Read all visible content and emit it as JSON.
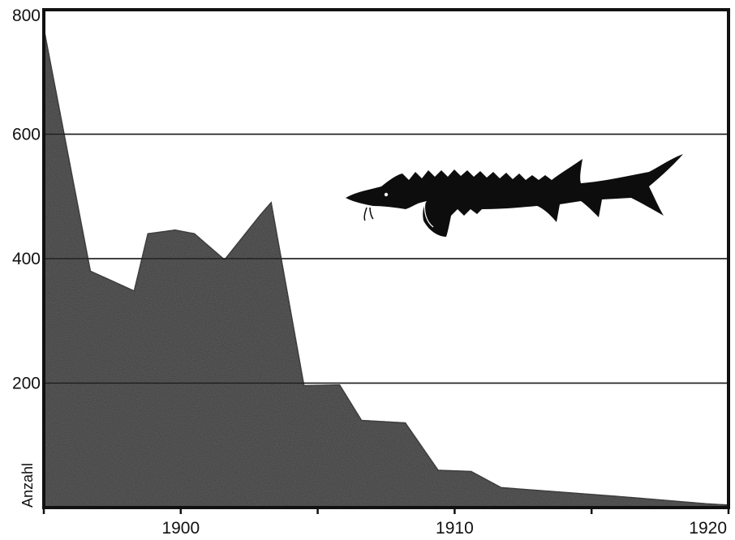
{
  "chart_data": {
    "type": "area",
    "ylabel": "Anzahl",
    "xlim": [
      1895,
      1920
    ],
    "ylim": [
      0,
      800
    ],
    "x_ticks": [
      1900,
      1910,
      1920
    ],
    "y_ticks": [
      200,
      400,
      600,
      800
    ],
    "grid": "horizontal",
    "area_color": "#3a3a3a",
    "x": [
      1895,
      1896.7,
      1898.3,
      1898.8,
      1899.8,
      1900.5,
      1901.6,
      1902.9,
      1903.3,
      1904.5,
      1905.8,
      1906.6,
      1908.2,
      1909.4,
      1910.6,
      1911.7,
      1913.5,
      1916.5,
      1919.2,
      1920
    ],
    "values": [
      770,
      380,
      348,
      440,
      446,
      440,
      398,
      470,
      490,
      196,
      197,
      140,
      136,
      60,
      58,
      32,
      26,
      16,
      6,
      4
    ],
    "illustration": "sturgeon-silhouette"
  }
}
